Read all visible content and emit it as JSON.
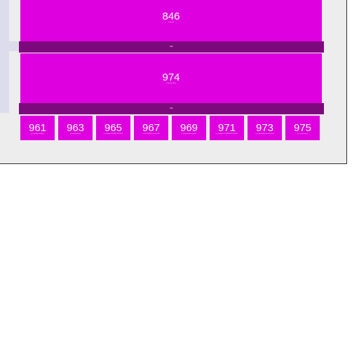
{
  "blocks": [
    {
      "number": "846",
      "caption": "lc-dev-kit"
    },
    {
      "number": "974",
      "caption": "lc-dev-kit-tablet"
    }
  ],
  "bars": [
    {
      "label": "bar"
    },
    {
      "label": "bar"
    }
  ],
  "tiles": [
    {
      "number": "961",
      "caption": "lc-ui-widget-deskview"
    },
    {
      "number": "963",
      "caption": "lc-ui-tiles-panel-b"
    },
    {
      "number": "965",
      "caption": "lc-ui-widget-PD-SERVICES-V3"
    },
    {
      "number": "967",
      "caption": "lc-ui-ul-DEVKIT-stories-W3"
    },
    {
      "number": "969",
      "caption": "lc-ui-devkit-tiles-mod-list"
    },
    {
      "number": "971",
      "caption": "lc-ui-widget-GITCHANGES-DEVKIT"
    },
    {
      "number": "973",
      "caption": "lc-ui-devkit-flip-controls-panel"
    },
    {
      "number": "975",
      "caption": "lc-ui-cycle-cell-Q2"
    }
  ],
  "colors": {
    "block": "#de00de",
    "bar": "#7d0a7d",
    "panel_bg": "#ededed",
    "left_band": "#dcdcec",
    "border": "#2f2f2f"
  }
}
